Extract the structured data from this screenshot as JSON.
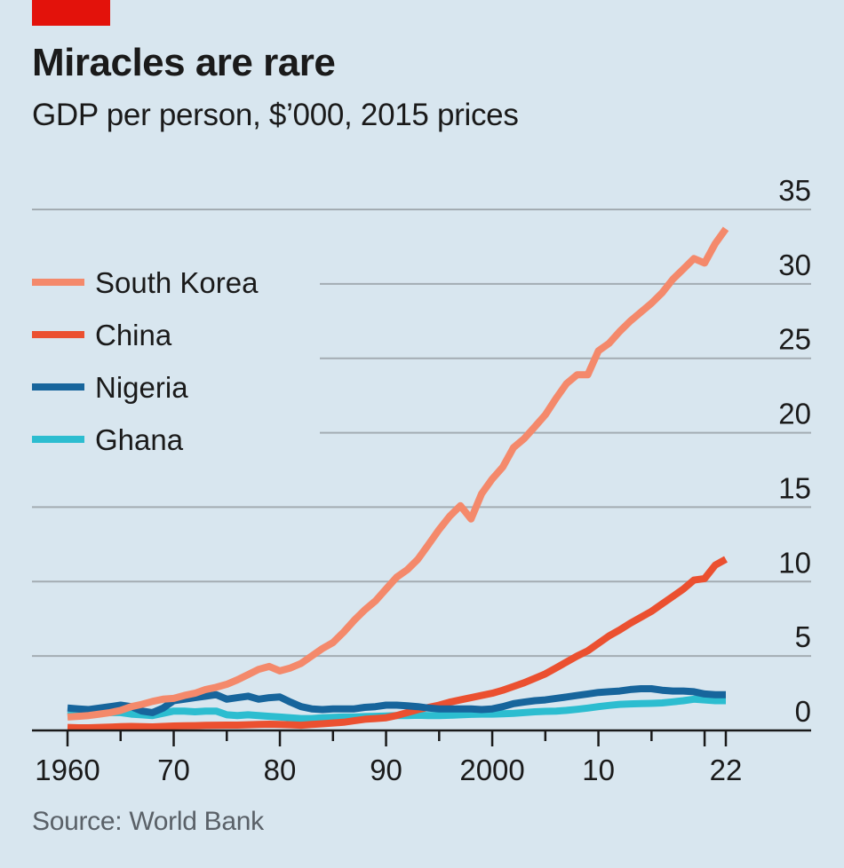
{
  "header": {
    "title": "Miracles are rare",
    "subtitle": "GDP per person, $’000, 2015 prices"
  },
  "footer": {
    "source": "Source: World Bank"
  },
  "colors": {
    "background": "#d8e6ef",
    "brand_tag": "#e3120b",
    "gridline": "#a3acb2",
    "axis": "#1a1a1a"
  },
  "chart_data": {
    "type": "line",
    "title": "Miracles are rare",
    "subtitle": "GDP per person, $’000, 2015 prices",
    "xlabel": "",
    "ylabel": "GDP per person, $’000, 2015 prices",
    "xlim": [
      1960,
      2022
    ],
    "ylim": [
      0,
      35
    ],
    "grid": true,
    "y_axis_side": "right",
    "legend_position": "top-left",
    "x_ticks": [
      1960,
      1965,
      1970,
      1975,
      1980,
      1985,
      1990,
      1995,
      2000,
      2005,
      2010,
      2015,
      2020,
      2022
    ],
    "x_tick_labels": [
      {
        "value": 1960,
        "label": "1960"
      },
      {
        "value": 1970,
        "label": "70"
      },
      {
        "value": 1980,
        "label": "80"
      },
      {
        "value": 1990,
        "label": "90"
      },
      {
        "value": 2000,
        "label": "2000"
      },
      {
        "value": 2010,
        "label": "10"
      },
      {
        "value": 2022,
        "label": "22"
      }
    ],
    "y_ticks": [
      0,
      5,
      10,
      15,
      20,
      25,
      30,
      35
    ],
    "y_tick_labels": [
      "0",
      "5",
      "10",
      "15",
      "20",
      "25",
      "30",
      "35"
    ],
    "x": [
      1960,
      1961,
      1962,
      1963,
      1964,
      1965,
      1966,
      1967,
      1968,
      1969,
      1970,
      1971,
      1972,
      1973,
      1974,
      1975,
      1976,
      1977,
      1978,
      1979,
      1980,
      1981,
      1982,
      1983,
      1984,
      1985,
      1986,
      1987,
      1988,
      1989,
      1990,
      1991,
      1992,
      1993,
      1994,
      1995,
      1996,
      1997,
      1998,
      1999,
      2000,
      2001,
      2002,
      2003,
      2004,
      2005,
      2006,
      2007,
      2008,
      2009,
      2010,
      2011,
      2012,
      2013,
      2014,
      2015,
      2016,
      2017,
      2018,
      2019,
      2020,
      2021,
      2022
    ],
    "series": [
      {
        "name": "South Korea",
        "color": "#f4896b",
        "values": [
          0.9,
          0.95,
          1.0,
          1.1,
          1.2,
          1.35,
          1.6,
          1.75,
          1.95,
          2.1,
          2.15,
          2.35,
          2.5,
          2.75,
          2.9,
          3.1,
          3.4,
          3.75,
          4.1,
          4.3,
          4.0,
          4.2,
          4.5,
          5.0,
          5.5,
          5.9,
          6.6,
          7.4,
          8.1,
          8.7,
          9.5,
          10.3,
          10.8,
          11.5,
          12.5,
          13.5,
          14.4,
          15.1,
          14.2,
          15.9,
          16.9,
          17.7,
          19.0,
          19.6,
          20.4,
          21.2,
          22.3,
          23.3,
          23.9,
          23.9,
          25.5,
          26.0,
          26.8,
          27.5,
          28.1,
          28.7,
          29.4,
          30.3,
          31.0,
          31.7,
          31.4,
          32.7,
          33.7
        ]
      },
      {
        "name": "China",
        "color": "#eb5030",
        "values": [
          0.2,
          0.18,
          0.18,
          0.2,
          0.22,
          0.25,
          0.27,
          0.25,
          0.24,
          0.27,
          0.3,
          0.31,
          0.32,
          0.34,
          0.35,
          0.36,
          0.36,
          0.38,
          0.4,
          0.42,
          0.4,
          0.38,
          0.35,
          0.4,
          0.45,
          0.5,
          0.55,
          0.65,
          0.75,
          0.8,
          0.85,
          1.0,
          1.2,
          1.4,
          1.55,
          1.7,
          1.9,
          2.05,
          2.2,
          2.35,
          2.5,
          2.7,
          2.95,
          3.2,
          3.5,
          3.8,
          4.2,
          4.6,
          5.0,
          5.35,
          5.85,
          6.35,
          6.75,
          7.2,
          7.6,
          8.0,
          8.5,
          9.0,
          9.5,
          10.1,
          10.2,
          11.1,
          11.5
        ]
      },
      {
        "name": "Nigeria",
        "color": "#17659c",
        "values": [
          1.5,
          1.45,
          1.4,
          1.5,
          1.6,
          1.7,
          1.6,
          1.3,
          1.2,
          1.5,
          2.0,
          2.1,
          2.2,
          2.3,
          2.4,
          2.1,
          2.2,
          2.3,
          2.1,
          2.2,
          2.25,
          1.9,
          1.6,
          1.45,
          1.4,
          1.45,
          1.45,
          1.45,
          1.55,
          1.6,
          1.7,
          1.7,
          1.65,
          1.6,
          1.5,
          1.45,
          1.45,
          1.45,
          1.45,
          1.4,
          1.45,
          1.6,
          1.8,
          1.9,
          2.0,
          2.05,
          2.15,
          2.25,
          2.35,
          2.45,
          2.55,
          2.6,
          2.65,
          2.75,
          2.8,
          2.8,
          2.7,
          2.65,
          2.65,
          2.6,
          2.45,
          2.4,
          2.4
        ]
      },
      {
        "name": "Ghana",
        "color": "#2cbdd0",
        "values": [
          1.0,
          1.05,
          1.1,
          1.15,
          1.2,
          1.2,
          1.1,
          1.05,
          1.0,
          1.15,
          1.3,
          1.3,
          1.25,
          1.3,
          1.3,
          1.05,
          1.0,
          1.05,
          1.0,
          0.95,
          0.9,
          0.85,
          0.8,
          0.8,
          0.85,
          0.88,
          0.9,
          0.9,
          0.93,
          0.95,
          0.97,
          1.0,
          1.0,
          1.02,
          1.0,
          1.0,
          1.02,
          1.05,
          1.08,
          1.1,
          1.1,
          1.12,
          1.15,
          1.2,
          1.25,
          1.28,
          1.3,
          1.35,
          1.42,
          1.5,
          1.6,
          1.68,
          1.75,
          1.78,
          1.8,
          1.82,
          1.85,
          1.92,
          2.0,
          2.1,
          2.05,
          2.0,
          2.0
        ]
      }
    ]
  }
}
